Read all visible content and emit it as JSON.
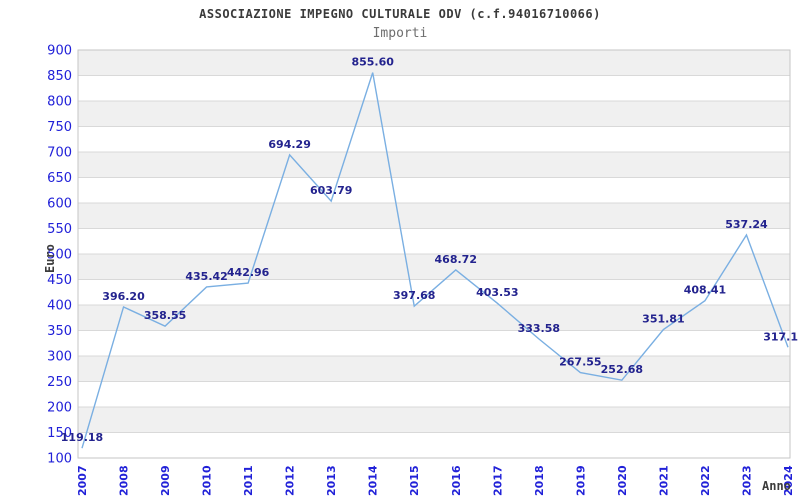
{
  "header": {
    "title": "ASSOCIAZIONE IMPEGNO CULTURALE ODV (c.f.94016710066)",
    "subtitle": "Importi"
  },
  "axes": {
    "y_title": "Euro",
    "x_title": "Anno"
  },
  "colors": {
    "line": "#7aafe2",
    "tick_label": "#2121d8",
    "value_label": "#23238e",
    "axis_title": "#3c3c3c",
    "band_gray": "#f0f0f0",
    "band_white": "#ffffff",
    "grid": "#d9d9d9",
    "border": "#c6c6c6"
  },
  "chart_data": {
    "type": "line",
    "title": "ASSOCIAZIONE IMPEGNO CULTURALE ODV (c.f.94016710066)",
    "subtitle": "Importi",
    "xlabel": "Anno",
    "ylabel": "Euro",
    "categories": [
      "2007",
      "2008",
      "2009",
      "2010",
      "2011",
      "2012",
      "2013",
      "2014",
      "2015",
      "2016",
      "2017",
      "2018",
      "2019",
      "2020",
      "2021",
      "2022",
      "2023",
      "2024"
    ],
    "values": [
      119.18,
      396.2,
      358.55,
      435.42,
      442.96,
      694.29,
      603.79,
      855.6,
      397.68,
      468.72,
      403.53,
      333.58,
      267.55,
      252.68,
      351.81,
      408.41,
      537.24,
      317.1
    ],
    "value_labels": [
      "119.18",
      "396.20",
      "358.55",
      "435.42",
      "442.96",
      "694.29",
      "603.79",
      "855.60",
      "397.68",
      "468.72",
      "403.53",
      "333.58",
      "267.55",
      "252.68",
      "351.81",
      "408.41",
      "537.24",
      "317.1"
    ],
    "ylim": [
      100,
      900
    ],
    "y_tick_step": 50,
    "grid": true,
    "banded_background": true,
    "legend": "none"
  }
}
